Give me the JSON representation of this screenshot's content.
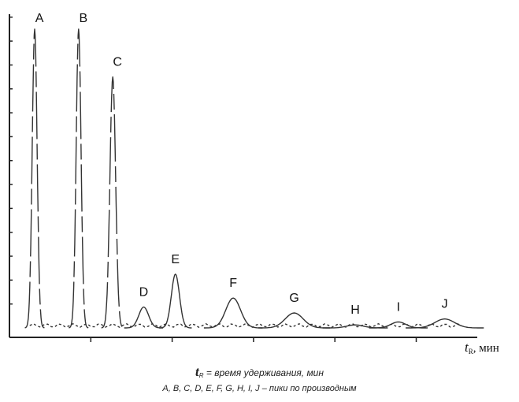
{
  "chart_data": {
    "type": "line",
    "xlabel_symbol": "t",
    "xlabel_subscript": "R",
    "xlabel_unit": ", мин",
    "caption_symbol": "t",
    "caption_subscript": "R",
    "caption_text": " = время удерживания, мин",
    "caption_peaks": "A, B, C, D, E, F, G, H, I, J – пики по производным",
    "grid": false,
    "legend": "none",
    "peaks": [
      {
        "label": "A",
        "retention": 0.31,
        "height": 1.0
      },
      {
        "label": "B",
        "retention": 0.85,
        "height": 1.0
      },
      {
        "label": "C",
        "retention": 1.27,
        "height": 0.84
      },
      {
        "label": "D",
        "retention": 1.65,
        "height": 0.07
      },
      {
        "label": "E",
        "retention": 2.04,
        "height": 0.18
      },
      {
        "label": "F",
        "retention": 2.75,
        "height": 0.1
      },
      {
        "label": "G",
        "retention": 3.5,
        "height": 0.05
      },
      {
        "label": "H",
        "retention": 4.25,
        "height": 0.01
      },
      {
        "label": "I",
        "retention": 4.78,
        "height": 0.02
      },
      {
        "label": "J",
        "retention": 5.35,
        "height": 0.03
      }
    ],
    "xlim": [
      0,
      5.75
    ],
    "ylim": [
      0,
      1.05
    ],
    "x_ticks": [
      1,
      2,
      3,
      4,
      5
    ],
    "y_ticks": [
      0.08,
      0.16,
      0.24,
      0.32,
      0.4,
      0.48,
      0.56,
      0.64,
      0.72,
      0.8,
      0.88,
      0.96,
      1.04
    ]
  }
}
